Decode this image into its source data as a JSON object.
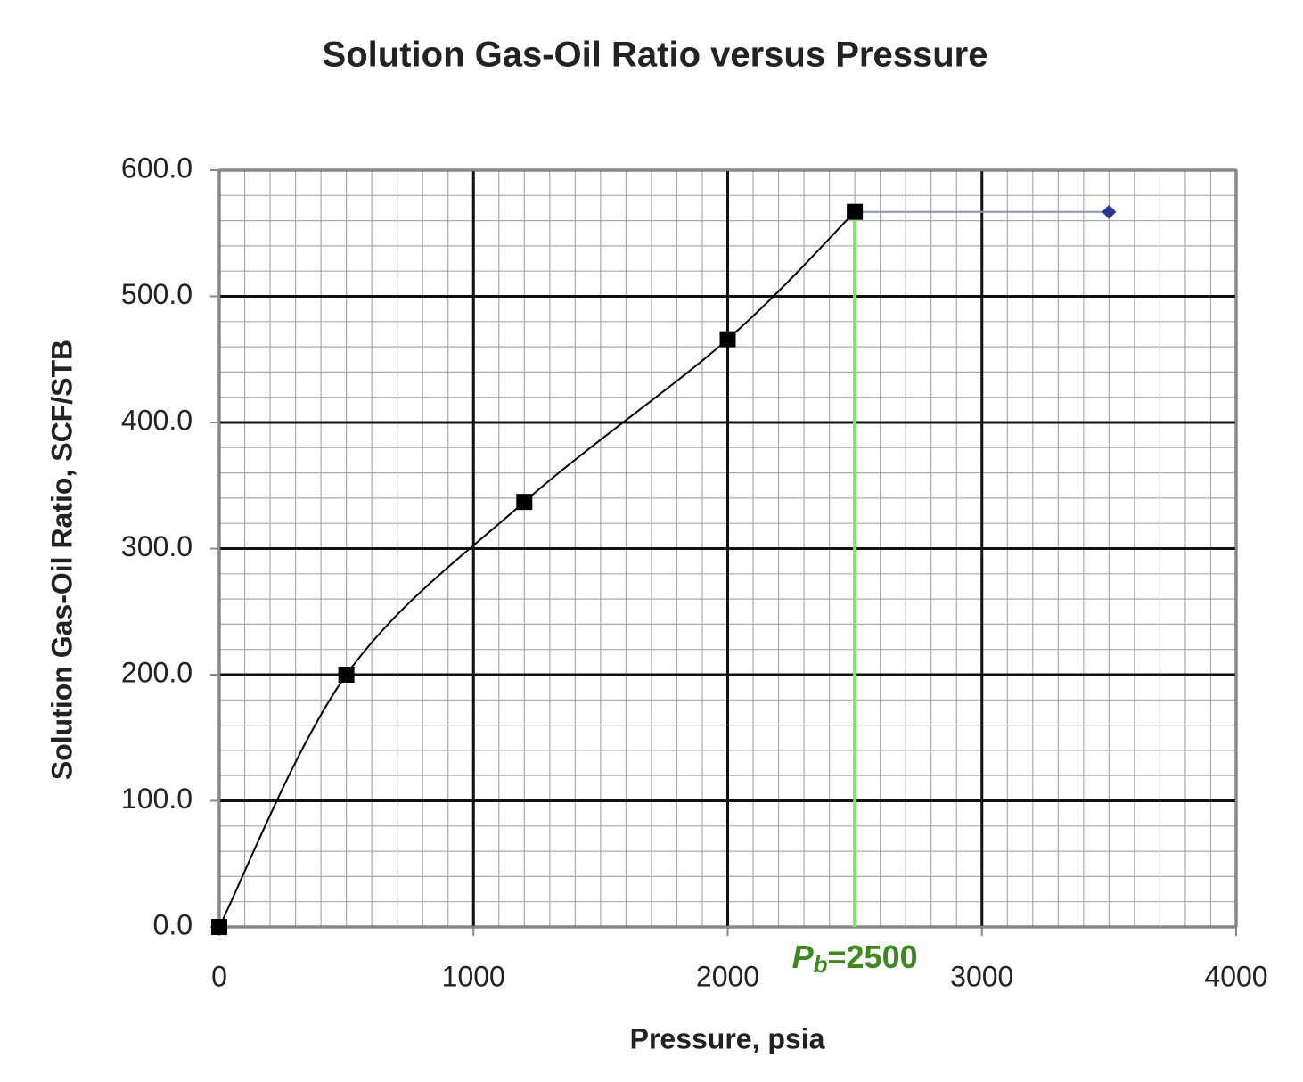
{
  "chart_data": {
    "type": "line",
    "title": "Solution Gas-Oil Ratio versus Pressure",
    "x_label": "Pressure, psia",
    "y_label": "Solution Gas-Oil Ratio, SCF/STB",
    "series": [
      {
        "color": "#283593",
        "line_color": "#8a90c4",
        "marker": "diamond",
        "x": [
          2500,
          3500
        ],
        "values": [
          567,
          567
        ]
      },
      {
        "color": "#000000",
        "line_color": "#000000",
        "marker": "square",
        "x": [
          0,
          500,
          1200,
          2000,
          2500
        ],
        "values": [
          0,
          200,
          337,
          466,
          567
        ]
      }
    ],
    "xlim": [
      0,
      4000
    ],
    "xticks": [
      0,
      1000,
      2000,
      3000,
      4000
    ],
    "ylim": [
      0,
      600
    ],
    "yticks": [
      {
        "value": 0,
        "label": "0.0"
      },
      {
        "value": 100,
        "label": "100.0"
      },
      {
        "value": 200,
        "label": "200.0"
      },
      {
        "value": 300,
        "label": "300.0"
      },
      {
        "value": 400,
        "label": "400.0"
      },
      {
        "value": 500,
        "label": "500.0"
      },
      {
        "value": 600,
        "label": "600.0"
      }
    ],
    "grid": true,
    "minor_grid": {
      "x": 100,
      "y": 20
    },
    "annotation": {
      "x": 2500,
      "color": "#7be85a",
      "text_color": "#3a8a1e",
      "main": "P",
      "sub": "b",
      "rest": "=2500"
    }
  }
}
